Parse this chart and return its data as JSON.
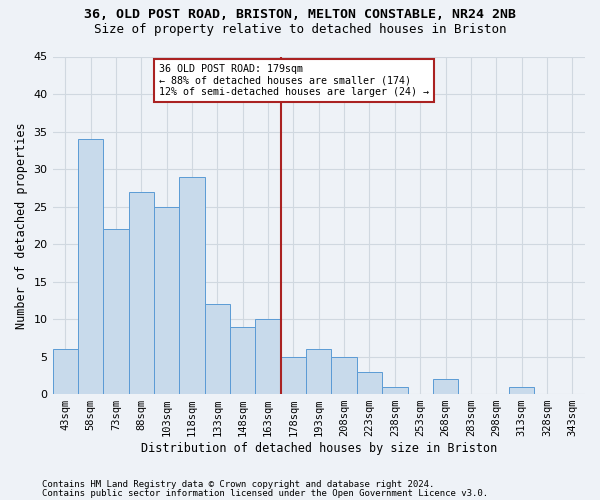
{
  "title_line1": "36, OLD POST ROAD, BRISTON, MELTON CONSTABLE, NR24 2NB",
  "title_line2": "Size of property relative to detached houses in Briston",
  "xlabel": "Distribution of detached houses by size in Briston",
  "ylabel": "Number of detached properties",
  "categories": [
    "43sqm",
    "58sqm",
    "73sqm",
    "88sqm",
    "103sqm",
    "118sqm",
    "133sqm",
    "148sqm",
    "163sqm",
    "178sqm",
    "193sqm",
    "208sqm",
    "223sqm",
    "238sqm",
    "253sqm",
    "268sqm",
    "283sqm",
    "298sqm",
    "313sqm",
    "328sqm",
    "343sqm"
  ],
  "values": [
    6,
    34,
    22,
    27,
    25,
    29,
    12,
    9,
    10,
    5,
    6,
    5,
    3,
    1,
    0,
    2,
    0,
    0,
    1,
    0,
    0
  ],
  "bar_color": "#c8daeb",
  "bar_edge_color": "#5b9bd5",
  "grid_color": "#d0d8e0",
  "vline_color": "#aa2222",
  "annotation_box_edge_color": "#aa2222",
  "ylim": [
    0,
    45
  ],
  "yticks": [
    0,
    5,
    10,
    15,
    20,
    25,
    30,
    35,
    40,
    45
  ],
  "footnote_line1": "Contains HM Land Registry data © Crown copyright and database right 2024.",
  "footnote_line2": "Contains public sector information licensed under the Open Government Licence v3.0.",
  "background_color": "#eef2f7",
  "plot_background_color": "#eef2f7"
}
